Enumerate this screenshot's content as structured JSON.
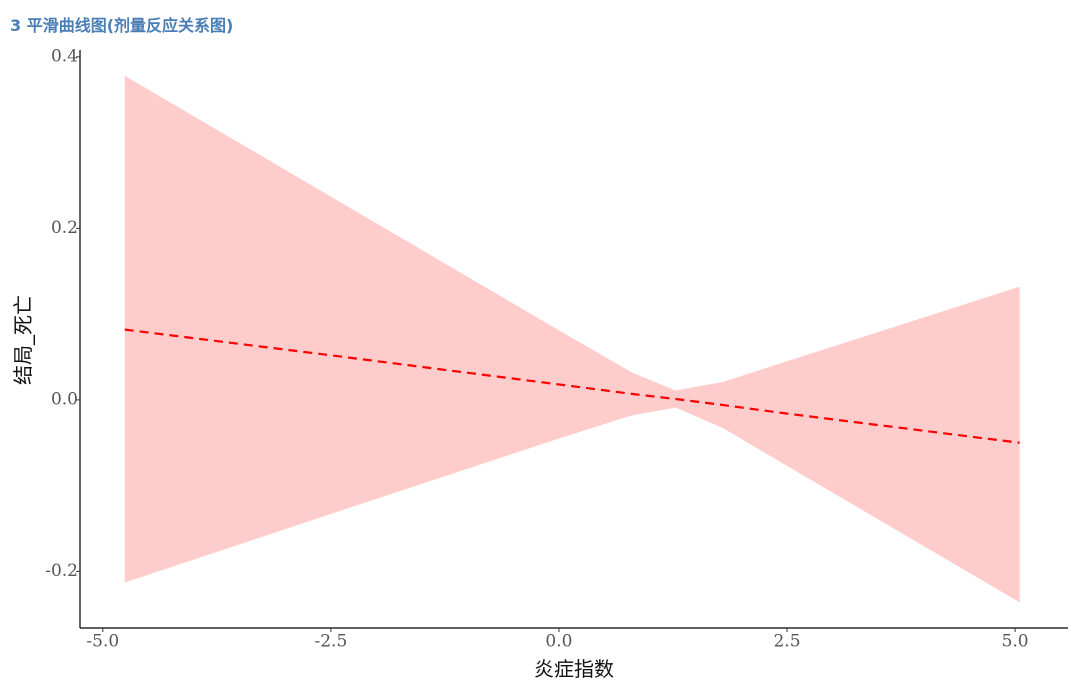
{
  "chart_data": {
    "type": "line",
    "title": "3 平滑曲线图(剂量反应关系图)",
    "x_label": "炎症指数",
    "y_label": "结局_死亡",
    "x": [
      -4.76,
      -2.5,
      0,
      0.8,
      1.28,
      1.8,
      2.5,
      5.05
    ],
    "values": [
      0.082,
      0.052,
      0.018,
      0.007,
      0.001,
      -0.006,
      -0.016,
      -0.05
    ],
    "ci_upper": [
      0.378,
      0.237,
      0.081,
      0.032,
      0.011,
      0.021,
      0.045,
      0.132
    ],
    "ci_lower": [
      -0.213,
      -0.133,
      -0.045,
      -0.018,
      -0.009,
      -0.033,
      -0.077,
      -0.236
    ],
    "color": "#ff0000",
    "band_color": "#ffcccc",
    "dashed": true,
    "xlim": [
      -5.25,
      5.58
    ],
    "ylim": [
      -0.266,
      0.408
    ],
    "xticks": [
      {
        "value": -5,
        "label": "-5.0"
      },
      -2.5,
      {
        "value": 0,
        "label": "0.0"
      },
      2.5,
      {
        "value": 5,
        "label": "5.0"
      }
    ],
    "yticks": [
      -0.2,
      {
        "value": 0,
        "label": "0.0"
      },
      0.2,
      0.4
    ],
    "grid": false
  }
}
